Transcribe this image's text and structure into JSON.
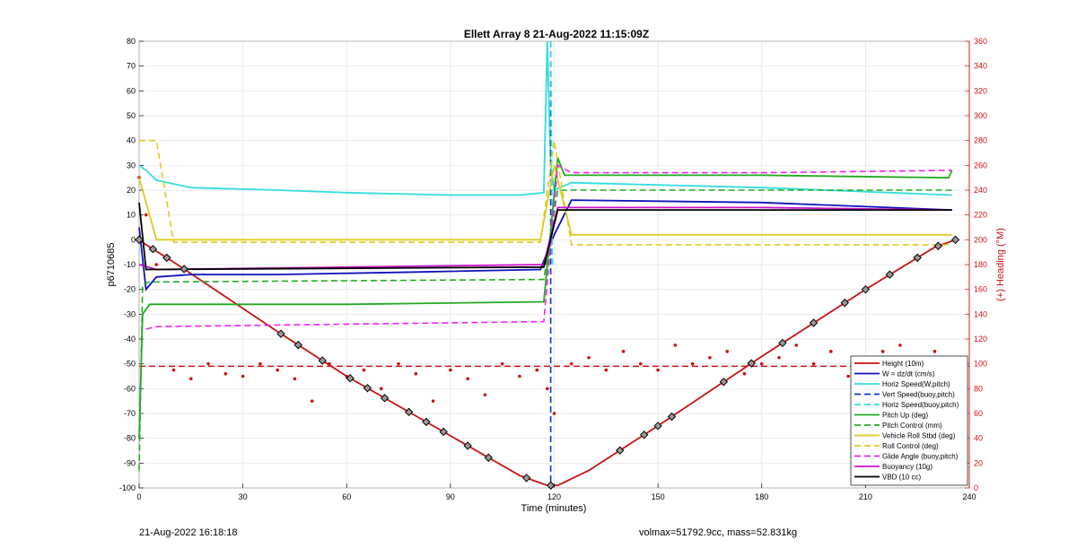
{
  "chart_data": {
    "type": "line",
    "title": "Ellett Array 8 21-Aug-2022 11:15:09Z",
    "xlabel": "Time (minutes)",
    "ylabel": "p6710685",
    "y2label": "(+) Heading (°M)",
    "xlim": [
      0,
      240
    ],
    "ylim": [
      -100,
      80
    ],
    "y2lim": [
      0,
      360
    ],
    "xticks": [
      0,
      30,
      60,
      90,
      120,
      150,
      180,
      210,
      240
    ],
    "yticks": [
      -100,
      -90,
      -80,
      -70,
      -60,
      -50,
      -40,
      -30,
      -20,
      -10,
      0,
      10,
      20,
      30,
      40,
      50,
      60,
      70,
      80
    ],
    "y2ticks": [
      0,
      20,
      40,
      60,
      80,
      100,
      120,
      140,
      160,
      180,
      200,
      220,
      240,
      260,
      280,
      300,
      320,
      340,
      360
    ],
    "grid": true,
    "legend_position": "bottom-right",
    "series": [
      {
        "name": "Height (10m)",
        "color": "#cc1111",
        "style": "solid",
        "x": [
          0,
          2,
          10,
          40,
          60,
          90,
          110,
          118,
          121,
          130,
          150,
          180,
          210,
          230,
          236
        ],
        "y": [
          0,
          -2,
          -9,
          -37,
          -55,
          -79,
          -95,
          -99,
          -99,
          -93,
          -75,
          -47,
          -20,
          -3,
          0
        ]
      },
      {
        "name": "W = dz/dt (cm/s)",
        "color": "#1111bb",
        "style": "solid",
        "x": [
          0,
          2,
          5,
          15,
          40,
          80,
          116,
          120,
          125,
          180,
          235
        ],
        "y": [
          5,
          -20,
          -15,
          -14,
          -14,
          -13,
          -12,
          2,
          16,
          15,
          12
        ]
      },
      {
        "name": "Horiz Speed(W,pitch)",
        "color": "#33dddd",
        "style": "solid",
        "x": [
          0,
          2,
          5,
          15,
          40,
          60,
          90,
          110,
          117,
          118,
          119,
          120,
          125,
          180,
          235
        ],
        "y": [
          30,
          28,
          24,
          21,
          20,
          19,
          18,
          18,
          19,
          80,
          30,
          20,
          23,
          21,
          18
        ]
      },
      {
        "name": "Vert Speed(buoy,pitch)",
        "color": "#1133cc",
        "style": "dash",
        "x": [
          119,
          119,
          119
        ],
        "y": [
          80,
          0,
          -100
        ]
      },
      {
        "name": "Horiz Speed(buoy,pitch)",
        "color": "#33dddd",
        "style": "dash",
        "x": [
          119,
          119.5
        ],
        "y": [
          80,
          -10
        ]
      },
      {
        "name": "Pitch Up (deg)",
        "color": "#22aa22",
        "style": "solid",
        "x": [
          0,
          1,
          3,
          15,
          60,
          117,
          121,
          123,
          180,
          234,
          235
        ],
        "y": [
          -80,
          -30,
          -26,
          -26,
          -26,
          -25,
          33,
          26,
          26,
          25,
          28
        ]
      },
      {
        "name": "Pitch Control (mm)",
        "color": "#22aa22",
        "style": "dash",
        "x": [
          0,
          1,
          3,
          117,
          121,
          235
        ],
        "y": [
          -93,
          -18,
          -17,
          -16,
          20,
          20
        ]
      },
      {
        "name": "Vehicle Roll Stbd (deg)",
        "color": "#ddcc22",
        "style": "solid",
        "x": [
          0,
          5,
          10,
          40,
          80,
          116,
          120,
          125,
          180,
          235
        ],
        "y": [
          25,
          0,
          0,
          0,
          0,
          0,
          30,
          2,
          2,
          2
        ]
      },
      {
        "name": "Roll Control (deg)",
        "color": "#ddcc22",
        "style": "dash",
        "x": [
          0,
          5,
          10,
          40,
          80,
          116,
          120,
          125,
          180,
          235
        ],
        "y": [
          40,
          40,
          -1,
          -1,
          -1,
          -1,
          40,
          -2,
          -2,
          -2
        ]
      },
      {
        "name": "Glide Angle (buoy,pitch)",
        "color": "#ee22ee",
        "style": "dash",
        "x": [
          2,
          5,
          60,
          117,
          121,
          125,
          180,
          235
        ],
        "y": [
          -36,
          -35,
          -34,
          -33,
          30,
          27,
          27,
          28
        ]
      },
      {
        "name": "Buoyancy (10g)",
        "color": "#cc11cc",
        "style": "solid",
        "x": [
          0,
          5,
          60,
          117,
          121,
          180,
          235
        ],
        "y": [
          -10,
          -12,
          -11,
          -10,
          13,
          13,
          12
        ]
      },
      {
        "name": "VBD (10 cc)",
        "color": "#000000",
        "style": "solid",
        "x": [
          0,
          2,
          117,
          121,
          235
        ],
        "y": [
          15,
          -12,
          -11,
          12,
          12
        ]
      }
    ],
    "heading": {
      "color": "#cc1111",
      "mean_line": 98,
      "x": [
        0,
        2,
        5,
        10,
        15,
        20,
        25,
        30,
        35,
        40,
        45,
        50,
        55,
        60,
        65,
        70,
        75,
        80,
        85,
        90,
        95,
        100,
        105,
        110,
        115,
        118,
        120,
        125,
        130,
        135,
        140,
        145,
        150,
        155,
        160,
        165,
        170,
        175,
        180,
        185,
        190,
        195,
        200,
        205,
        210,
        215,
        220,
        225,
        230,
        235
      ],
      "y": [
        250,
        220,
        180,
        95,
        88,
        100,
        92,
        90,
        100,
        95,
        88,
        70,
        100,
        90,
        95,
        80,
        100,
        92,
        70,
        95,
        88,
        75,
        100,
        90,
        95,
        80,
        60,
        100,
        105,
        95,
        110,
        100,
        95,
        115,
        100,
        105,
        110,
        92,
        100,
        105,
        115,
        100,
        110,
        90,
        105,
        110,
        115,
        100,
        110,
        100
      ]
    },
    "markers_x": [
      0,
      4,
      8,
      13,
      41,
      46,
      53,
      61,
      66,
      71,
      78,
      83,
      88,
      95,
      101,
      112,
      119,
      139,
      146,
      150,
      154,
      169,
      177,
      186,
      195,
      204,
      210,
      217,
      225,
      231,
      236
    ]
  },
  "footer": {
    "timestamp": "21-Aug-2022 16:18:18",
    "info": "volmax=51792.9cc, mass=52.831kg"
  }
}
